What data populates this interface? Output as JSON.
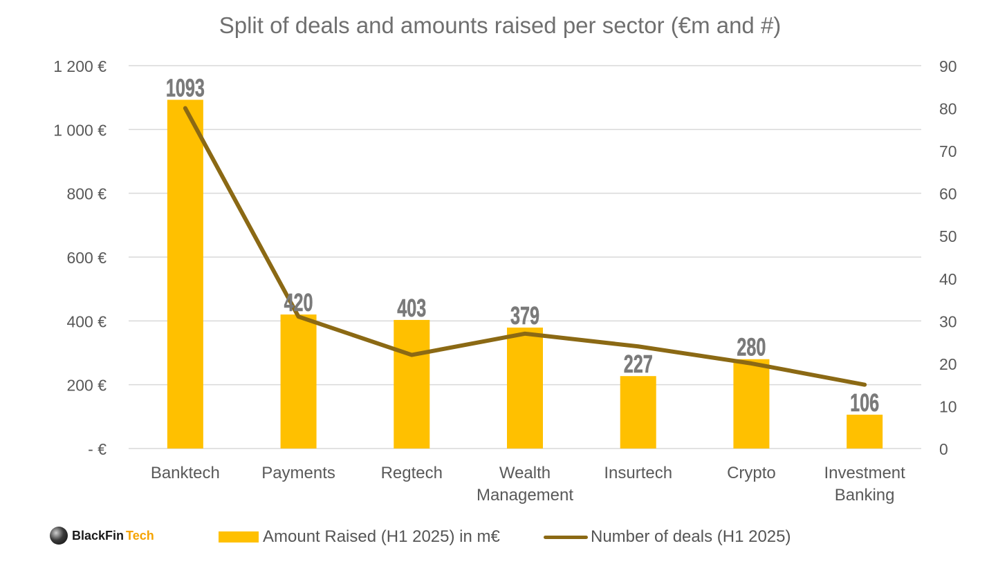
{
  "brand": {
    "name": "BlackFin",
    "accent": "Tech"
  },
  "colors": {
    "bars": "#FFC000",
    "line": "#8B6914",
    "grid": "#d9d9d9",
    "axis_text": "#595959",
    "data_label": "#7a7a7a"
  },
  "chart_data": {
    "type": "bar",
    "title": "Split of deals and amounts raised per sector (€m and #)",
    "categories": [
      [
        "Banktech"
      ],
      [
        "Payments"
      ],
      [
        "Regtech"
      ],
      [
        "Wealth",
        "Management"
      ],
      [
        "Insurtech"
      ],
      [
        "Crypto"
      ],
      [
        "Investment",
        "Banking"
      ]
    ],
    "series": [
      {
        "name": "Amount Raised (H1 2025) in m€",
        "type": "bar",
        "axis": "left",
        "values": [
          1093,
          420,
          403,
          379,
          227,
          280,
          106
        ],
        "data_labels": [
          "1093",
          "420",
          "403",
          "379",
          "227",
          "280",
          "106"
        ]
      },
      {
        "name": "Number of deals (H1 2025)",
        "type": "line",
        "axis": "right",
        "values": [
          80,
          31,
          22,
          27,
          24,
          20,
          15
        ]
      }
    ],
    "y_left": {
      "ylim": [
        0,
        1200
      ],
      "ticks": [
        0,
        200,
        400,
        600,
        800,
        1000,
        1200
      ],
      "tick_labels": [
        "-  €",
        "200 €",
        "400 €",
        "600 €",
        "800 €",
        "1 000 €",
        "1 200 €"
      ]
    },
    "y_right": {
      "ylim": [
        0,
        90
      ],
      "ticks": [
        0,
        10,
        20,
        30,
        40,
        50,
        60,
        70,
        80,
        90
      ],
      "tick_labels": [
        "0",
        "10",
        "20",
        "30",
        "40",
        "50",
        "60",
        "70",
        "80",
        "90"
      ]
    },
    "grid": true,
    "legend": "bottom"
  }
}
